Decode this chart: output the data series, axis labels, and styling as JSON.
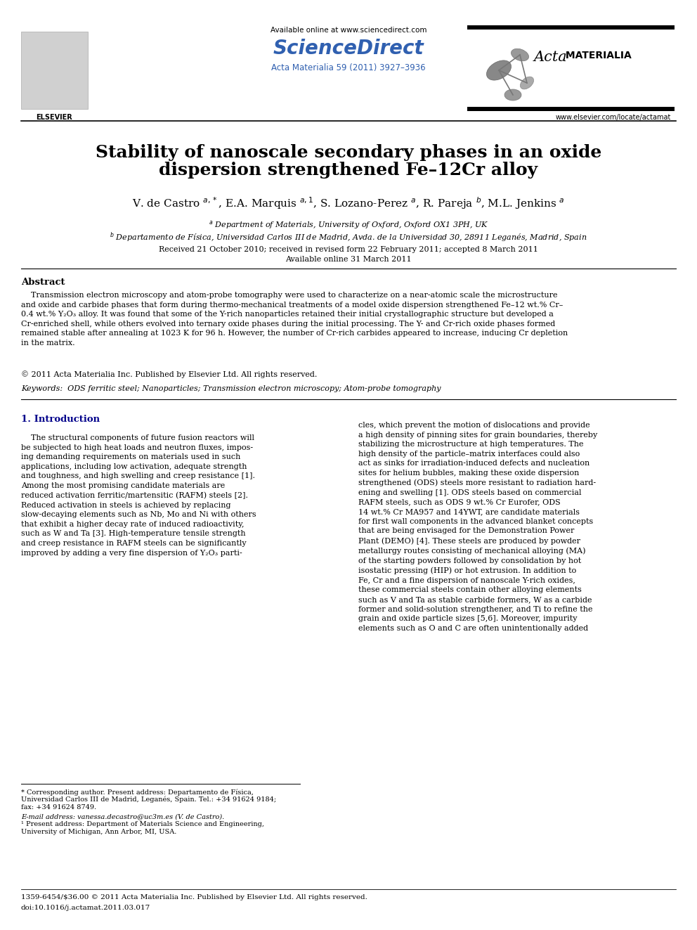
{
  "bg_color": "#ffffff",
  "page_width": 9.92,
  "page_height": 13.23,
  "header": {
    "available_online": "Available online at www.sciencedirect.com",
    "journal_info": "Acta Materialia 59 (2011) 3927–3936",
    "website": "www.elsevier.com/locate/actamat"
  },
  "title_line1": "Stability of nanoscale secondary phases in an oxide",
  "title_line2": "dispersion strengthened Fe–12Cr alloy",
  "authors_text": "V. de Castro $^{a,*}$, E.A. Marquis $^{a,1}$, S. Lozano-Perez $^{a}$, R. Pareja $^{b}$, M.L. Jenkins $^{a}$",
  "affil_a": "$^{a}$ Department of Materials, University of Oxford, Oxford OX1 3PH, UK",
  "affil_b": "$^{b}$ Departamento de Física, Universidad Carlos III de Madrid, Avda. de la Universidad 30, 28911 Leganés, Madrid, Spain",
  "dates_line1": "Received 21 October 2010; received in revised form 22 February 2011; accepted 8 March 2011",
  "dates_line2": "Available online 31 March 2011",
  "abstract_title": "Abstract",
  "abstract_indent": "    Transmission electron microscopy and atom-probe tomography were used to characterize on a near-atomic scale the microstructure\nand oxide and carbide phases that form during thermo-mechanical treatments of a model oxide dispersion strengthened Fe–12 wt.% Cr–\n0.4 wt.% Y₂O₃ alloy. It was found that some of the Y-rich nanoparticles retained their initial crystallographic structure but developed a\nCr-enriched shell, while others evolved into ternary oxide phases during the initial processing. The Y- and Cr-rich oxide phases formed\nremained stable after annealing at 1023 K for 96 h. However, the number of Cr-rich carbides appeared to increase, inducing Cr depletion\nin the matrix.",
  "abstract_copy": "© 2011 Acta Materialia Inc. Published by Elsevier Ltd. All rights reserved.",
  "keywords": "Keywords:  ODS ferritic steel; Nanoparticles; Transmission electron microscopy; Atom-probe tomography",
  "section1_title": "1. Introduction",
  "col1_para": "    The structural components of future fusion reactors will\nbe subjected to high heat loads and neutron fluxes, impos-\ning demanding requirements on materials used in such\napplications, including low activation, adequate strength\nand toughness, and high swelling and creep resistance [1].\nAmong the most promising candidate materials are\nreduced activation ferritic/martensitic (RAFM) steels [2].\nReduced activation in steels is achieved by replacing\nslow-decaying elements such as Nb, Mo and Ni with others\nthat exhibit a higher decay rate of induced radioactivity,\nsuch as W and Ta [3]. High-temperature tensile strength\nand creep resistance in RAFM steels can be significantly\nimproved by adding a very fine dispersion of Y₂O₃ parti-",
  "col2_para": "cles, which prevent the motion of dislocations and provide\na high density of pinning sites for grain boundaries, thereby\nstabilizing the microstructure at high temperatures. The\nhigh density of the particle–matrix interfaces could also\nact as sinks for irradiation-induced defects and nucleation\nsites for helium bubbles, making these oxide dispersion\nstrengthened (ODS) steels more resistant to radiation hard-\nening and swelling [1]. ODS steels based on commercial\nRAFM steels, such as ODS 9 wt.% Cr Eurofer, ODS\n14 wt.% Cr MA957 and 14YWT, are candidate materials\nfor first wall components in the advanced blanket concepts\nthat are being envisaged for the Demonstration Power\nPlant (DEMO) [4]. These steels are produced by powder\nmetallurgy routes consisting of mechanical alloying (MA)\nof the starting powders followed by consolidation by hot\nisostatic pressing (HIP) or hot extrusion. In addition to\nFe, Cr and a fine dispersion of nanoscale Y-rich oxides,\nthese commercial steels contain other alloying elements\nsuch as V and Ta as stable carbide formers, W as a carbide\nformer and solid-solution strengthener, and Ti to refine the\ngrain and oxide particle sizes [5,6]. Moreover, impurity\nelements such as O and C are often unintentionally added",
  "footnote1a": "* Corresponding author. Present address: Departamento de Física,",
  "footnote1b": "Universidad Carlos III de Madrid, Leganés, Spain. Tel.: +34 91624 9184;",
  "footnote1c": "fax: +34 91624 8749.",
  "footnote2": "E-mail address: vanessa.decastro@uc3m.es (V. de Castro).",
  "footnote3a": "¹ Present address: Department of Materials Science and Engineering,",
  "footnote3b": "University of Michigan, Ann Arbor, MI, USA.",
  "footer_left": "1359-6454/$36.00 © 2011 Acta Materialia Inc. Published by Elsevier Ltd. All rights reserved.",
  "footer_doi": "doi:10.1016/j.actamat.2011.03.017",
  "sciencedirect_color": "#3060b0",
  "journal_info_color": "#3060b0",
  "intro_title_color": "#00008B"
}
